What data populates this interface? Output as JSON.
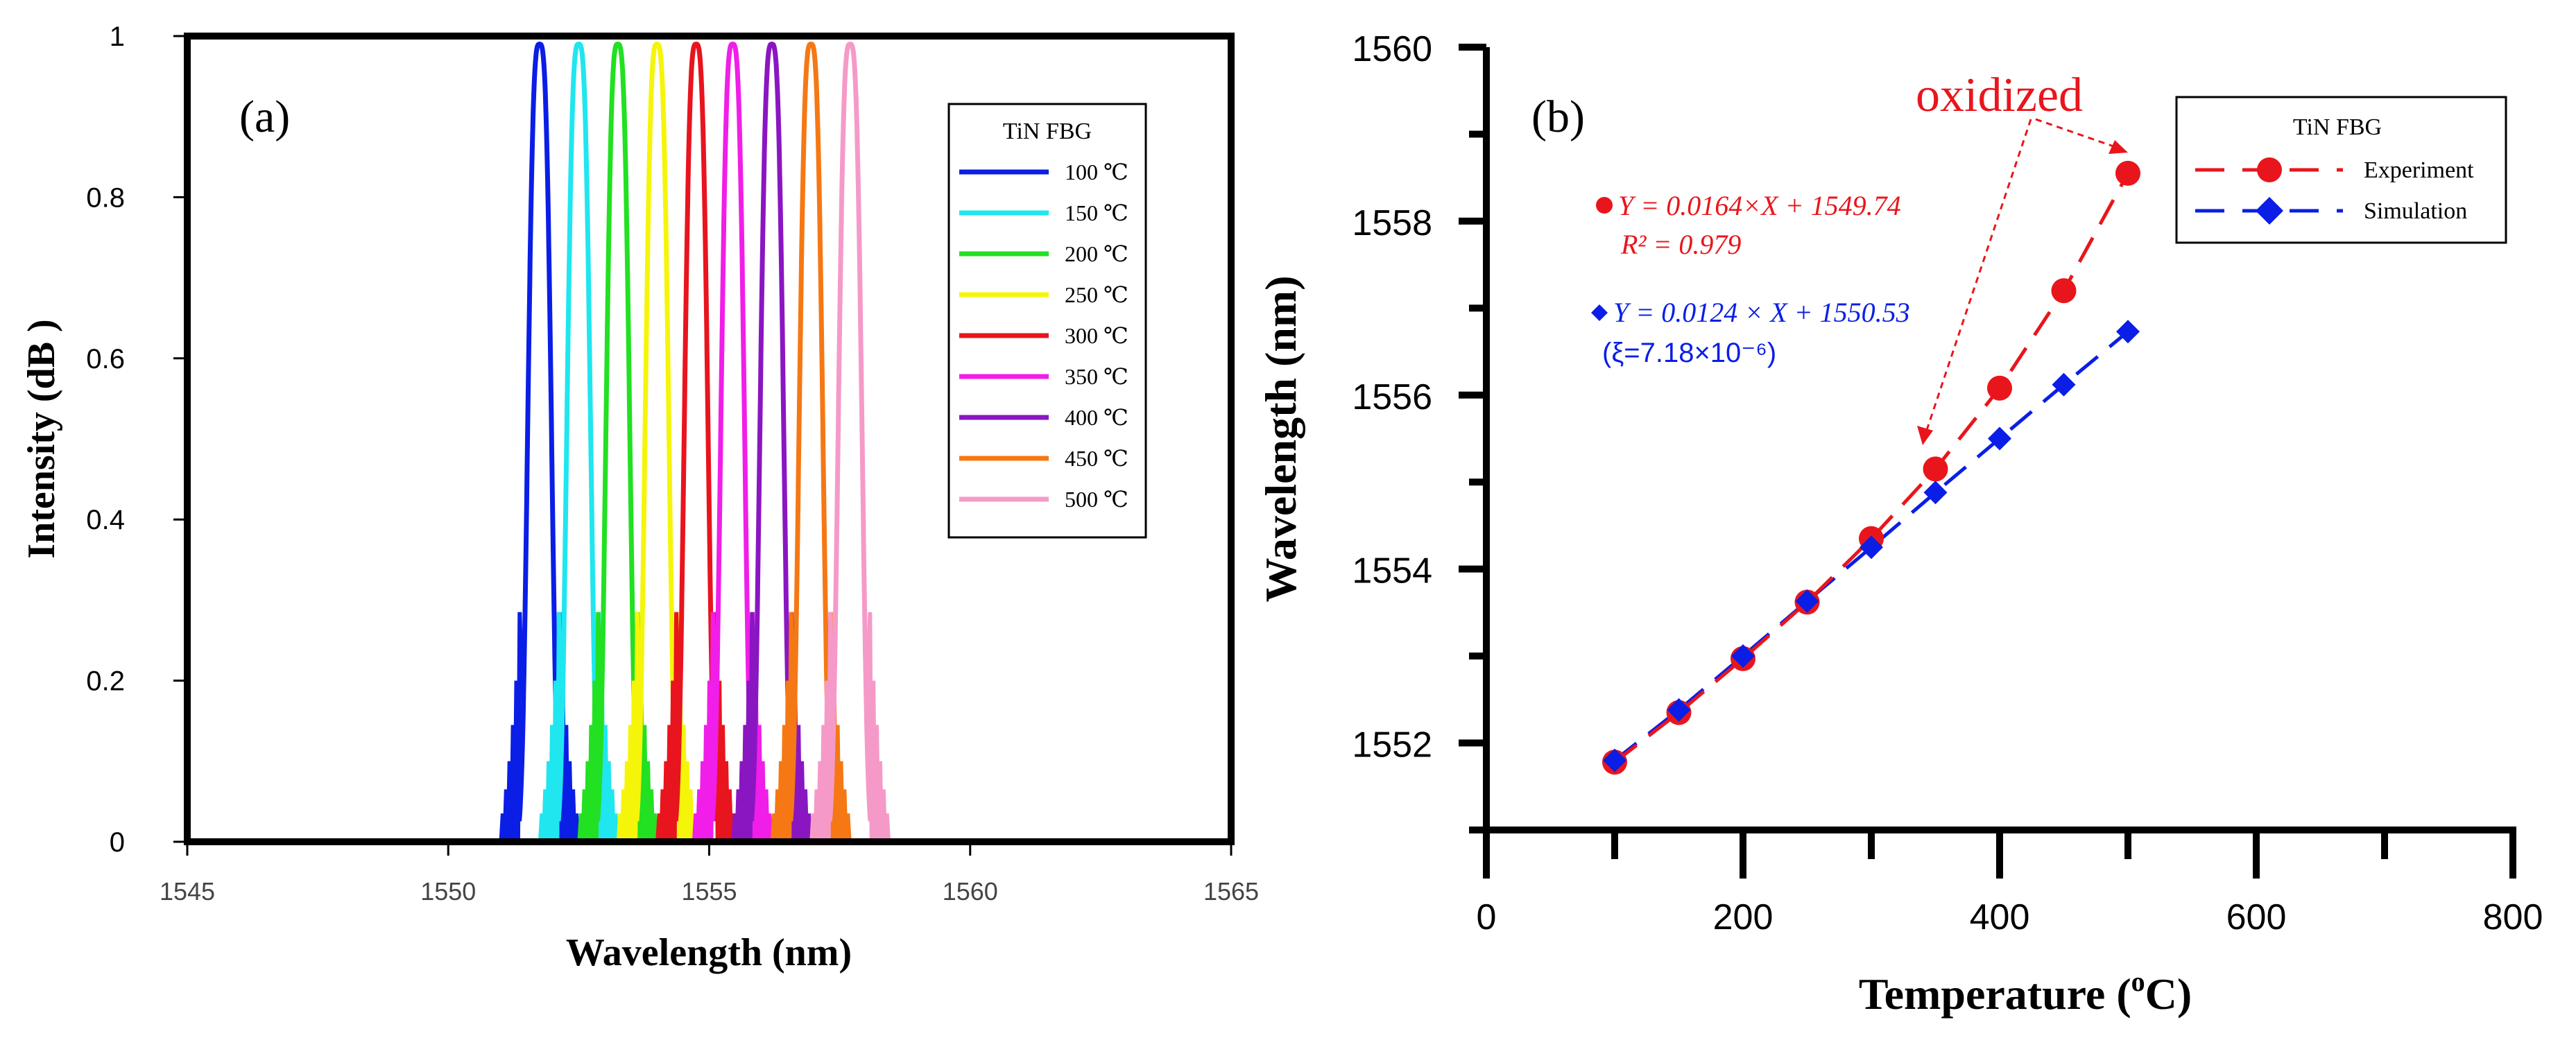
{
  "chart_data": [
    {
      "type": "line",
      "panel_label": "(a)",
      "xlabel": "Wavelength (nm)",
      "ylabel": "Intensity (dB )",
      "xlim": [
        1545,
        1565
      ],
      "ylim": [
        0,
        1
      ],
      "x_ticks": [
        "1545",
        "1550",
        "1555",
        "1560",
        "1565"
      ],
      "y_ticks": [
        "0",
        "0.2",
        "0.4",
        "0.6",
        "0.8",
        "1"
      ],
      "legend": {
        "title": "TiN FBG",
        "placement": "right"
      },
      "series": [
        {
          "name": "100 ℃",
          "center": 1551.75,
          "peak": 0.99,
          "color": "#0a1ee6"
        },
        {
          "name": "150 ℃",
          "center": 1552.5,
          "peak": 0.99,
          "color": "#1fe6ef"
        },
        {
          "name": "200 ℃",
          "center": 1553.25,
          "peak": 0.99,
          "color": "#22e022"
        },
        {
          "name": "250 ℃",
          "center": 1554.0,
          "peak": 0.99,
          "color": "#f5f50a"
        },
        {
          "name": "300 ℃",
          "center": 1554.75,
          "peak": 0.99,
          "color": "#e8141e"
        },
        {
          "name": "350 ℃",
          "center": 1555.45,
          "peak": 0.99,
          "color": "#f01ee8"
        },
        {
          "name": "400 ℃",
          "center": 1556.2,
          "peak": 0.99,
          "color": "#8a16c2"
        },
        {
          "name": "450 ℃",
          "center": 1556.95,
          "peak": 0.99,
          "color": "#f57814"
        },
        {
          "name": "500 ℃",
          "center": 1557.7,
          "peak": 0.99,
          "color": "#f59ac8"
        }
      ]
    },
    {
      "type": "scatter",
      "panel_label": "(b)",
      "xlabel_main": "Temperature (",
      "xlabel_sup": "o",
      "xlabel_end": "C)",
      "ylabel": "Wavelength (nm)",
      "xlim": [
        0,
        800
      ],
      "ylim": [
        1551,
        1560
      ],
      "x_ticks": [
        "0",
        "200",
        "400",
        "600",
        "800"
      ],
      "y_ticks": [
        "1552",
        "1554",
        "1556",
        "1558",
        "1560"
      ],
      "legend": {
        "title": "TiN FBG",
        "placement": "top-right"
      },
      "series": [
        {
          "name": "Experiment",
          "marker": "circle",
          "color": "#e8161c",
          "x": [
            100,
            150,
            200,
            250,
            300,
            350,
            400,
            450,
            500
          ],
          "y": [
            1551.78,
            1552.35,
            1552.97,
            1553.62,
            1554.35,
            1555.15,
            1556.08,
            1557.2,
            1558.55
          ]
        },
        {
          "name": "Simulation",
          "marker": "diamond",
          "color": "#0a1ee6",
          "x": [
            100,
            150,
            200,
            250,
            300,
            350,
            400,
            450,
            500
          ],
          "y": [
            1551.8,
            1552.38,
            1553.0,
            1553.63,
            1554.25,
            1554.88,
            1555.5,
            1556.12,
            1556.73
          ]
        }
      ],
      "annotations": {
        "oxidized": "oxidized",
        "exp_fit_eq": "Y = 0.0164×X + 1549.74",
        "exp_r2": "R² = 0.979",
        "sim_fit_eq": "Y = 0.0124 × X + 1550.53",
        "sim_xi": "(ξ=7.18×10⁻⁶)"
      }
    }
  ]
}
